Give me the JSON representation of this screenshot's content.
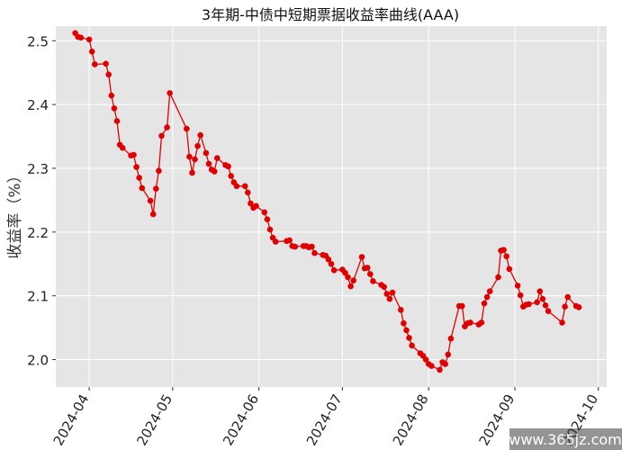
{
  "chart_data": {
    "type": "line",
    "title": "3年期-中债中短期票据收益率曲线(AAA)",
    "xlabel": "",
    "ylabel": "收益率（%）",
    "x_tick_labels": [
      "2024-04",
      "2024-05",
      "2024-06",
      "2024-07",
      "2024-08",
      "2024-09",
      "2024-10"
    ],
    "x_tick_dates": [
      "2024-04-01",
      "2024-05-01",
      "2024-06-01",
      "2024-07-01",
      "2024-08-01",
      "2024-09-01",
      "2024-10-01"
    ],
    "y_tick_labels": [
      "2.0",
      "2.1",
      "2.2",
      "2.3",
      "2.4",
      "2.5"
    ],
    "y_ticks": [
      2.0,
      2.1,
      2.2,
      2.3,
      2.4,
      2.5
    ],
    "xlim": [
      "2024-03-20",
      "2024-10-04"
    ],
    "ylim": [
      1.957,
      2.523
    ],
    "grid": true,
    "background": "#e5e5e5",
    "series_color": "#e00000",
    "series": [
      {
        "x": [
          "2024-03-27",
          "2024-03-28",
          "2024-03-29",
          "2024-04-01",
          "2024-04-02",
          "2024-04-03",
          "2024-04-07",
          "2024-04-08",
          "2024-04-09",
          "2024-04-10",
          "2024-04-11",
          "2024-04-12",
          "2024-04-13",
          "2024-04-16",
          "2024-04-17",
          "2024-04-18",
          "2024-04-19",
          "2024-04-20",
          "2024-04-23",
          "2024-04-24",
          "2024-04-25",
          "2024-04-26",
          "2024-04-27",
          "2024-04-29",
          "2024-04-30",
          "2024-05-06",
          "2024-05-07",
          "2024-05-08",
          "2024-05-09",
          "2024-05-10",
          "2024-05-11",
          "2024-05-13",
          "2024-05-14",
          "2024-05-15",
          "2024-05-16",
          "2024-05-17",
          "2024-05-20",
          "2024-05-21",
          "2024-05-22",
          "2024-05-23",
          "2024-05-24",
          "2024-05-27",
          "2024-05-28",
          "2024-05-29",
          "2024-05-30",
          "2024-05-31",
          "2024-06-03",
          "2024-06-04",
          "2024-06-05",
          "2024-06-06",
          "2024-06-07",
          "2024-06-11",
          "2024-06-12",
          "2024-06-13",
          "2024-06-14",
          "2024-06-17",
          "2024-06-18",
          "2024-06-19",
          "2024-06-20",
          "2024-06-21",
          "2024-06-24",
          "2024-06-25",
          "2024-06-26",
          "2024-06-27",
          "2024-06-28",
          "2024-07-01",
          "2024-07-02",
          "2024-07-03",
          "2024-07-04",
          "2024-07-05",
          "2024-07-08",
          "2024-07-09",
          "2024-07-10",
          "2024-07-11",
          "2024-07-12",
          "2024-07-15",
          "2024-07-16",
          "2024-07-17",
          "2024-07-18",
          "2024-07-19",
          "2024-07-22",
          "2024-07-23",
          "2024-07-24",
          "2024-07-25",
          "2024-07-26",
          "2024-07-29",
          "2024-07-30",
          "2024-07-31",
          "2024-08-01",
          "2024-08-02",
          "2024-08-05",
          "2024-08-06",
          "2024-08-07",
          "2024-08-08",
          "2024-08-09",
          "2024-08-12",
          "2024-08-13",
          "2024-08-14",
          "2024-08-15",
          "2024-08-16",
          "2024-08-19",
          "2024-08-20",
          "2024-08-21",
          "2024-08-22",
          "2024-08-23",
          "2024-08-26",
          "2024-08-27",
          "2024-08-28",
          "2024-08-29",
          "2024-08-30",
          "2024-09-02",
          "2024-09-03",
          "2024-09-04",
          "2024-09-05",
          "2024-09-06",
          "2024-09-09",
          "2024-09-10",
          "2024-09-11",
          "2024-09-12",
          "2024-09-13",
          "2024-09-18",
          "2024-09-19",
          "2024-09-20",
          "2024-09-23",
          "2024-09-24"
        ],
        "y": [
          2.512,
          2.506,
          2.505,
          2.502,
          2.483,
          2.463,
          2.464,
          2.447,
          2.414,
          2.394,
          2.374,
          2.337,
          2.332,
          2.32,
          2.321,
          2.302,
          2.285,
          2.269,
          2.249,
          2.228,
          2.268,
          2.296,
          2.351,
          2.364,
          2.418,
          2.362,
          2.318,
          2.293,
          2.314,
          2.335,
          2.352,
          2.324,
          2.307,
          2.298,
          2.295,
          2.316,
          2.305,
          2.303,
          2.288,
          2.278,
          2.272,
          2.272,
          2.262,
          2.245,
          2.238,
          2.241,
          2.231,
          2.22,
          2.204,
          2.191,
          2.185,
          2.186,
          2.187,
          2.178,
          2.177,
          2.178,
          2.178,
          2.176,
          2.177,
          2.167,
          2.164,
          2.163,
          2.157,
          2.15,
          2.14,
          2.141,
          2.136,
          2.129,
          2.115,
          2.124,
          2.161,
          2.143,
          2.144,
          2.134,
          2.123,
          2.117,
          2.114,
          2.103,
          2.095,
          2.105,
          2.078,
          2.057,
          2.046,
          2.034,
          2.022,
          2.01,
          2.006,
          2.0,
          1.993,
          1.99,
          1.984,
          1.996,
          1.993,
          2.008,
          2.033,
          2.084,
          2.084,
          2.052,
          2.057,
          2.058,
          2.055,
          2.058,
          2.088,
          2.098,
          2.107,
          2.129,
          2.171,
          2.172,
          2.162,
          2.142,
          2.116,
          2.101,
          2.083,
          2.086,
          2.087,
          2.09,
          2.107,
          2.095,
          2.085,
          2.076,
          2.058,
          2.083,
          2.098,
          2.084,
          2.082
        ]
      }
    ]
  },
  "watermark": "www.365jz.com"
}
